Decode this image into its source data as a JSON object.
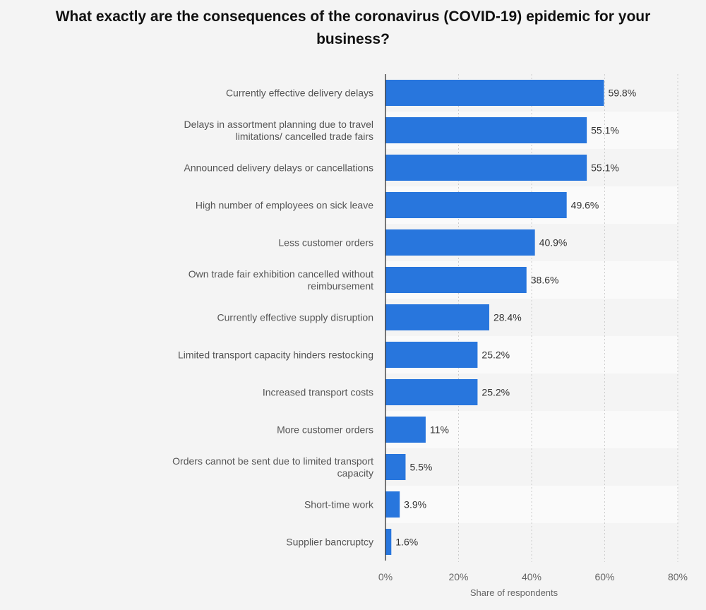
{
  "colors": {
    "bar": "#2876dd",
    "band": "#ffffff",
    "grid": "#cccccc",
    "axis": "#222222"
  },
  "chart_data": {
    "type": "bar",
    "orientation": "horizontal",
    "title": "What exactly are the consequences of the coronavirus (COVID-19) epidemic for your business?",
    "xlabel": "Share of respondents",
    "ylabel": "",
    "xlim": [
      0,
      80
    ],
    "ticks": [
      "0%",
      "20%",
      "40%",
      "60%",
      "80%"
    ],
    "grid": true,
    "categories": [
      "Currently effective delivery delays",
      "Delays in assortment planning due to travel limitations/ cancelled trade fairs",
      "Announced delivery delays or cancellations",
      "High number of employees on sick leave",
      "Less customer orders",
      "Own trade fair exhibition cancelled without reimbursement",
      "Currently effective supply disruption",
      "Limited transport capacity hinders restocking",
      "Increased transport costs",
      "More customer orders",
      "Orders cannot be sent due to limited transport capacity",
      "Short-time work",
      "Supplier bancruptcy"
    ],
    "category_lines": [
      [
        "Currently effective delivery delays"
      ],
      [
        "Delays in assortment planning due to travel",
        "limitations/ cancelled trade fairs"
      ],
      [
        "Announced delivery delays or cancellations"
      ],
      [
        "High number of employees on sick leave"
      ],
      [
        "Less customer orders"
      ],
      [
        "Own trade fair exhibition cancelled without",
        "reimbursement"
      ],
      [
        "Currently effective supply disruption"
      ],
      [
        "Limited transport capacity hinders restocking"
      ],
      [
        "Increased transport costs"
      ],
      [
        "More customer orders"
      ],
      [
        "Orders cannot be sent due to limited transport",
        "capacity"
      ],
      [
        "Short-time work"
      ],
      [
        "Supplier bancruptcy"
      ]
    ],
    "values": [
      59.8,
      55.1,
      55.1,
      49.6,
      40.9,
      38.6,
      28.4,
      25.2,
      25.2,
      11,
      5.5,
      3.9,
      1.6
    ],
    "value_labels": [
      "59.8%",
      "55.1%",
      "55.1%",
      "49.6%",
      "40.9%",
      "38.6%",
      "28.4%",
      "25.2%",
      "25.2%",
      "11%",
      "5.5%",
      "3.9%",
      "1.6%"
    ]
  }
}
